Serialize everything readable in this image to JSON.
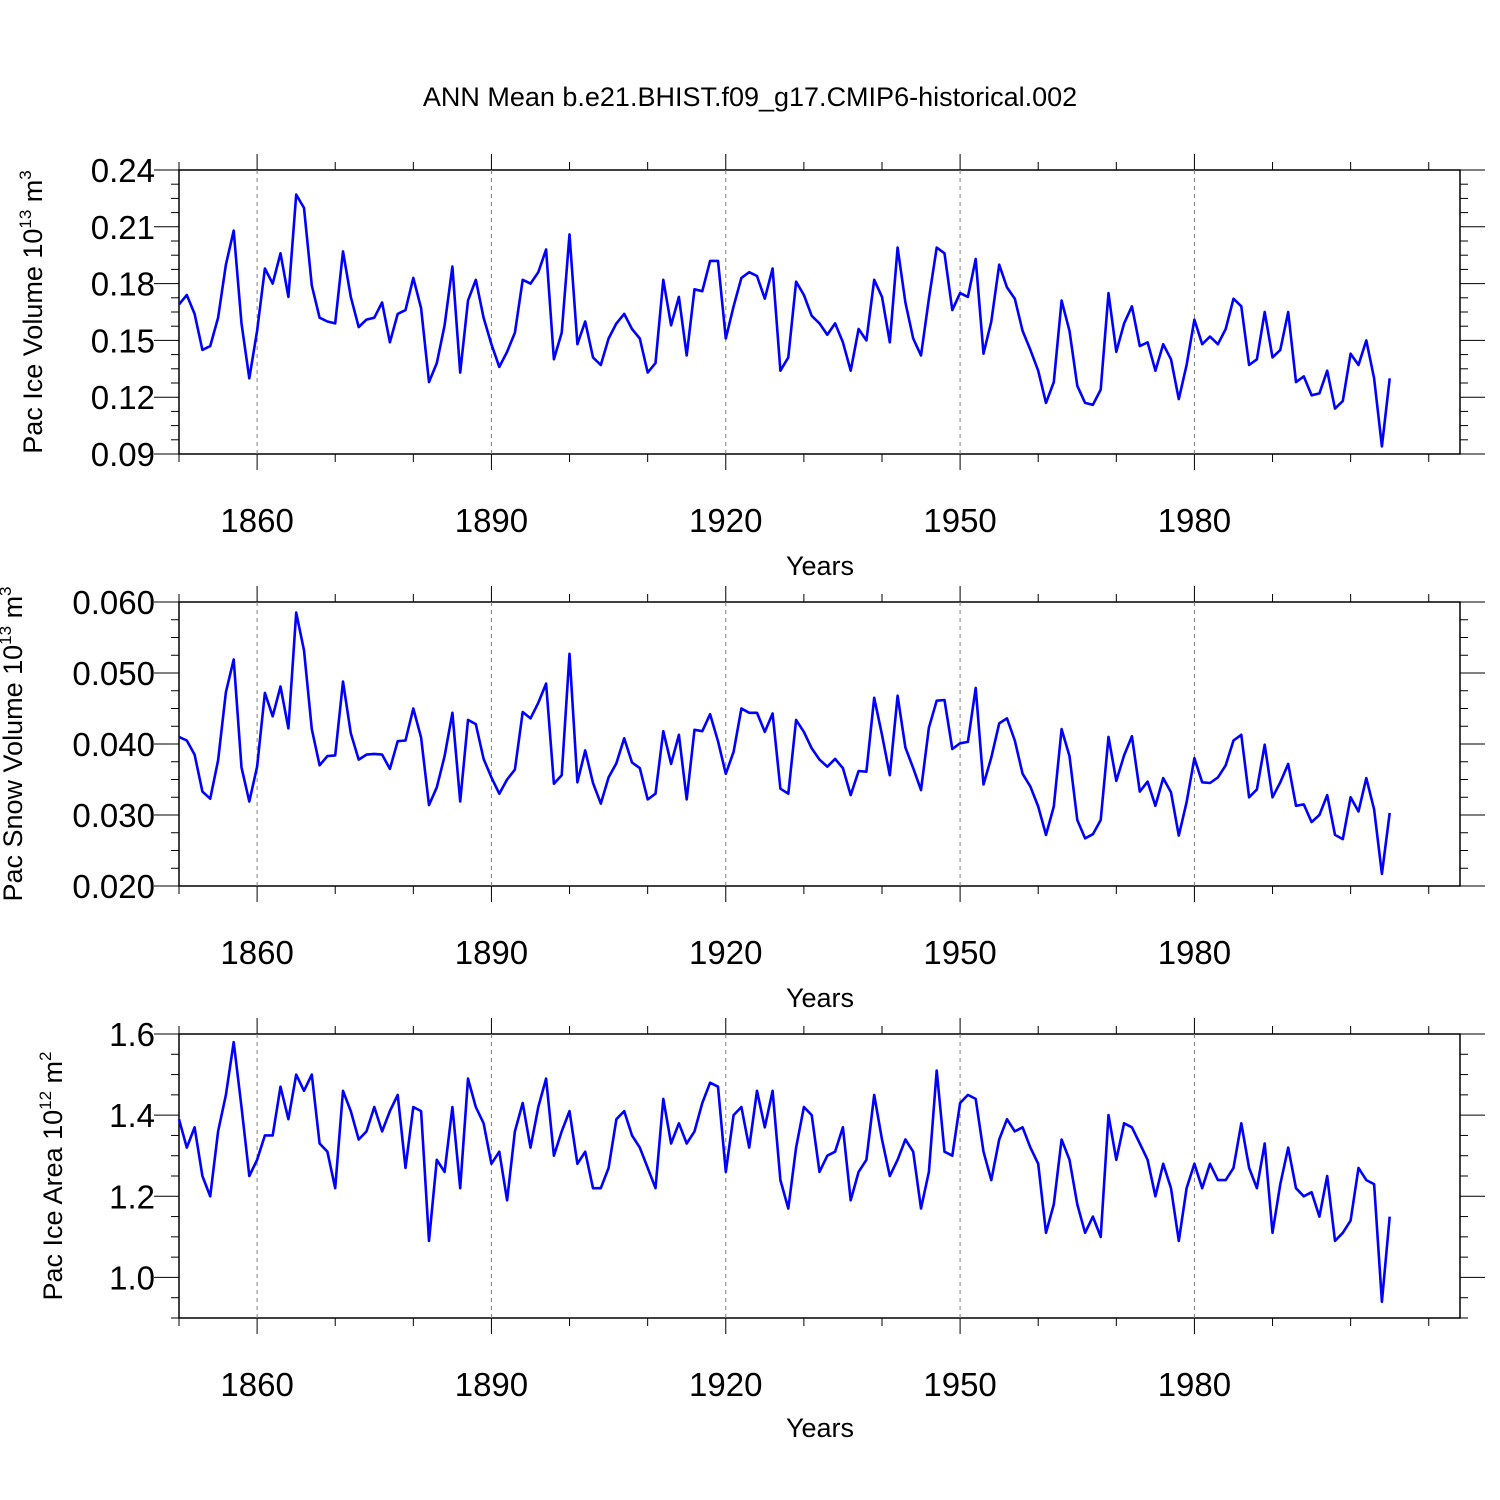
{
  "title": "ANN Mean b.e21.BHIST.f09_g17.CMIP6-historical.002",
  "colors": {
    "line": "#0000ff",
    "axis": "#000000",
    "grid": "#808080",
    "background": "#ffffff"
  },
  "chart_data": [
    {
      "type": "line",
      "ylabel_main": "Pac Ice Volume 10",
      "ylabel_exp": "13",
      "ylabel_unit": " m",
      "ylabel_unit_exp": "3",
      "xlabel": "Years",
      "xlim": [
        1850,
        2014
      ],
      "ylim": [
        0.09,
        0.24
      ],
      "yticks": [
        0.09,
        0.12,
        0.15,
        0.18,
        0.21,
        0.24
      ],
      "ytick_labels": [
        "0.09",
        "0.12",
        "0.15",
        "0.18",
        "0.21",
        "0.24"
      ],
      "xticks": [
        1860,
        1890,
        1920,
        1950,
        1980
      ],
      "xtick_labels": [
        "1860",
        "1890",
        "1920",
        "1950",
        "1980"
      ],
      "grid": "vertical dashed at x ticks",
      "x_start": 1850,
      "values": [
        0.169,
        0.174,
        0.164,
        0.145,
        0.147,
        0.162,
        0.19,
        0.208,
        0.159,
        0.13,
        0.155,
        0.188,
        0.18,
        0.196,
        0.173,
        0.227,
        0.22,
        0.179,
        0.162,
        0.16,
        0.159,
        0.197,
        0.173,
        0.157,
        0.161,
        0.162,
        0.17,
        0.149,
        0.164,
        0.166,
        0.183,
        0.167,
        0.128,
        0.138,
        0.158,
        0.189,
        0.133,
        0.171,
        0.182,
        0.162,
        0.148,
        0.136,
        0.144,
        0.154,
        0.182,
        0.18,
        0.186,
        0.198,
        0.14,
        0.154,
        0.206,
        0.148,
        0.16,
        0.141,
        0.137,
        0.151,
        0.159,
        0.164,
        0.156,
        0.151,
        0.133,
        0.138,
        0.182,
        0.158,
        0.173,
        0.142,
        0.177,
        0.176,
        0.192,
        0.192,
        0.151,
        0.168,
        0.183,
        0.186,
        0.184,
        0.172,
        0.188,
        0.134,
        0.141,
        0.181,
        0.174,
        0.163,
        0.159,
        0.153,
        0.159,
        0.149,
        0.134,
        0.156,
        0.15,
        0.182,
        0.173,
        0.149,
        0.199,
        0.17,
        0.151,
        0.142,
        0.172,
        0.199,
        0.196,
        0.166,
        0.175,
        0.173,
        0.193,
        0.143,
        0.16,
        0.19,
        0.178,
        0.172,
        0.155,
        0.145,
        0.134,
        0.117,
        0.128,
        0.171,
        0.155,
        0.126,
        0.117,
        0.116,
        0.124,
        0.175,
        0.144,
        0.159,
        0.168,
        0.147,
        0.149,
        0.134,
        0.148,
        0.14,
        0.119,
        0.137,
        0.161,
        0.148,
        0.152,
        0.148,
        0.156,
        0.172,
        0.168,
        0.137,
        0.14,
        0.165,
        0.141,
        0.145,
        0.165,
        0.128,
        0.131,
        0.121,
        0.122,
        0.134,
        0.114,
        0.118,
        0.143,
        0.137,
        0.15,
        0.13,
        0.094,
        0.13
      ]
    },
    {
      "type": "line",
      "ylabel_main": "Pac Snow Volume 10",
      "ylabel_exp": "13",
      "ylabel_unit": " m",
      "ylabel_unit_exp": "3",
      "xlabel": "Years",
      "xlim": [
        1850,
        2014
      ],
      "ylim": [
        0.02,
        0.06
      ],
      "yticks": [
        0.02,
        0.03,
        0.04,
        0.05,
        0.06
      ],
      "ytick_labels": [
        "0.020",
        "0.030",
        "0.040",
        "0.050",
        "0.060"
      ],
      "xticks": [
        1860,
        1890,
        1920,
        1950,
        1980
      ],
      "xtick_labels": [
        "1860",
        "1890",
        "1920",
        "1950",
        "1980"
      ],
      "grid": "vertical dashed at x ticks",
      "x_start": 1850,
      "values": [
        0.041,
        0.0405,
        0.0385,
        0.0333,
        0.0323,
        0.0377,
        0.0473,
        0.0519,
        0.0367,
        0.0319,
        0.0368,
        0.0472,
        0.0439,
        0.0481,
        0.0422,
        0.0585,
        0.0532,
        0.0421,
        0.037,
        0.0383,
        0.0384,
        0.0488,
        0.0415,
        0.0378,
        0.0385,
        0.0386,
        0.0385,
        0.0365,
        0.0404,
        0.0405,
        0.045,
        0.0409,
        0.0314,
        0.0339,
        0.0383,
        0.0444,
        0.0319,
        0.0434,
        0.0428,
        0.0379,
        0.0353,
        0.033,
        0.035,
        0.0364,
        0.0445,
        0.0436,
        0.0458,
        0.0485,
        0.0344,
        0.0356,
        0.0527,
        0.0346,
        0.0391,
        0.0345,
        0.0316,
        0.0353,
        0.0373,
        0.0408,
        0.0374,
        0.0366,
        0.0322,
        0.033,
        0.0418,
        0.0372,
        0.0413,
        0.0322,
        0.042,
        0.0418,
        0.0442,
        0.0404,
        0.0358,
        0.0389,
        0.045,
        0.0444,
        0.0444,
        0.0417,
        0.0443,
        0.0337,
        0.033,
        0.0434,
        0.0417,
        0.0394,
        0.0378,
        0.0368,
        0.0379,
        0.0366,
        0.0328,
        0.0362,
        0.0361,
        0.0465,
        0.0413,
        0.0356,
        0.0468,
        0.0395,
        0.0366,
        0.0335,
        0.0423,
        0.0461,
        0.0462,
        0.0393,
        0.0401,
        0.0403,
        0.0479,
        0.0343,
        0.0381,
        0.0429,
        0.0436,
        0.0405,
        0.0358,
        0.034,
        0.0312,
        0.0272,
        0.0312,
        0.0421,
        0.0383,
        0.0293,
        0.0267,
        0.0273,
        0.0293,
        0.041,
        0.0348,
        0.0384,
        0.0411,
        0.0333,
        0.0347,
        0.0313,
        0.0352,
        0.0332,
        0.0271,
        0.0318,
        0.038,
        0.0346,
        0.0345,
        0.0353,
        0.037,
        0.0405,
        0.0413,
        0.0325,
        0.0336,
        0.0399,
        0.0325,
        0.0346,
        0.0372,
        0.0313,
        0.0315,
        0.029,
        0.03,
        0.0328,
        0.0272,
        0.0266,
        0.0325,
        0.0305,
        0.0352,
        0.0308,
        0.0217,
        0.0303
      ]
    },
    {
      "type": "line",
      "ylabel_main": "Pac Ice Area 10",
      "ylabel_exp": "12",
      "ylabel_unit": " m",
      "ylabel_unit_exp": "2",
      "xlabel": "Years",
      "xlim": [
        1850,
        2014
      ],
      "ylim": [
        0.9,
        1.6
      ],
      "yticks": [
        1.0,
        1.2,
        1.4,
        1.6
      ],
      "ytick_labels": [
        "1.0",
        "1.2",
        "1.4",
        "1.6"
      ],
      "xticks": [
        1860,
        1890,
        1920,
        1950,
        1980
      ],
      "xtick_labels": [
        "1860",
        "1890",
        "1920",
        "1950",
        "1980"
      ],
      "grid": "vertical dashed at x ticks",
      "x_start": 1850,
      "values": [
        1.39,
        1.32,
        1.37,
        1.25,
        1.2,
        1.36,
        1.45,
        1.58,
        1.42,
        1.25,
        1.29,
        1.35,
        1.35,
        1.47,
        1.39,
        1.5,
        1.46,
        1.5,
        1.33,
        1.31,
        1.22,
        1.46,
        1.41,
        1.34,
        1.36,
        1.42,
        1.36,
        1.41,
        1.45,
        1.27,
        1.42,
        1.41,
        1.09,
        1.29,
        1.26,
        1.42,
        1.22,
        1.49,
        1.42,
        1.38,
        1.28,
        1.31,
        1.19,
        1.36,
        1.43,
        1.32,
        1.42,
        1.49,
        1.3,
        1.36,
        1.41,
        1.28,
        1.31,
        1.22,
        1.22,
        1.27,
        1.39,
        1.41,
        1.35,
        1.32,
        1.27,
        1.22,
        1.44,
        1.33,
        1.38,
        1.33,
        1.36,
        1.43,
        1.48,
        1.47,
        1.26,
        1.4,
        1.42,
        1.32,
        1.46,
        1.37,
        1.46,
        1.24,
        1.17,
        1.32,
        1.42,
        1.4,
        1.26,
        1.3,
        1.31,
        1.37,
        1.19,
        1.26,
        1.29,
        1.45,
        1.34,
        1.25,
        1.29,
        1.34,
        1.31,
        1.17,
        1.26,
        1.51,
        1.31,
        1.3,
        1.43,
        1.45,
        1.44,
        1.31,
        1.24,
        1.34,
        1.39,
        1.36,
        1.37,
        1.32,
        1.28,
        1.11,
        1.18,
        1.34,
        1.29,
        1.18,
        1.11,
        1.15,
        1.1,
        1.4,
        1.29,
        1.38,
        1.37,
        1.33,
        1.29,
        1.2,
        1.28,
        1.22,
        1.09,
        1.22,
        1.28,
        1.22,
        1.28,
        1.24,
        1.24,
        1.27,
        1.38,
        1.27,
        1.22,
        1.33,
        1.11,
        1.23,
        1.32,
        1.22,
        1.2,
        1.21,
        1.15,
        1.25,
        1.09,
        1.11,
        1.14,
        1.27,
        1.24,
        1.23,
        0.94,
        1.15
      ]
    }
  ]
}
